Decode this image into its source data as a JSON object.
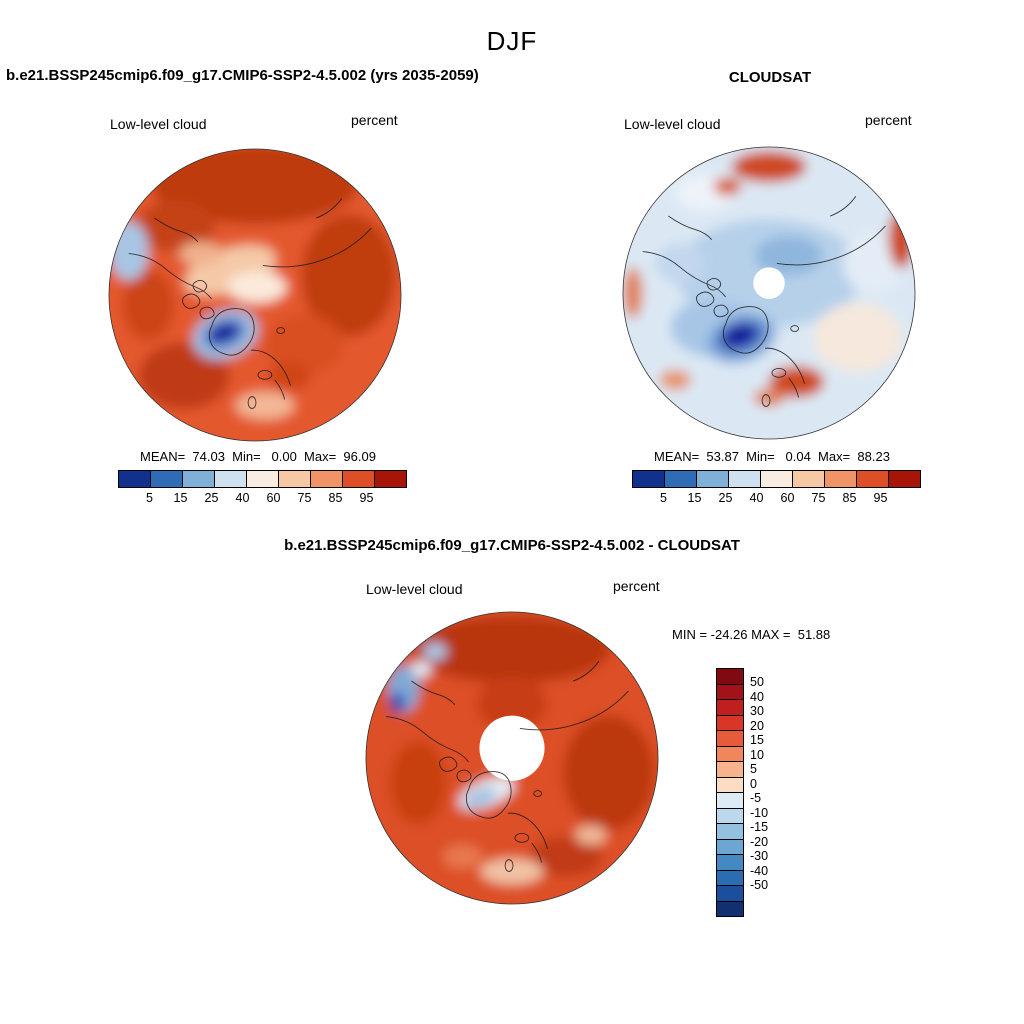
{
  "title": "DJF",
  "left_panel": {
    "title": "b.e21.BSSP245cmip6.f09_g17.CMIP6-SSP2-4.5.002 (yrs 2035-2059)",
    "field_label": "Low-level cloud",
    "units": "percent",
    "stats": "MEAN=  74.03  Min=   0.00  Max=  96.09"
  },
  "right_panel": {
    "title": "CLOUDSAT",
    "field_label": "Low-level cloud",
    "units": "percent",
    "stats": "MEAN=  53.87  Min=   0.04  Max=  88.23"
  },
  "diff_panel": {
    "title": "b.e21.BSSP245cmip6.f09_g17.CMIP6-SSP2-4.5.002 - CLOUDSAT",
    "field_label": "Low-level cloud",
    "units": "percent",
    "minmax": "MIN = -24.26 MAX =  51.88"
  },
  "shared_colorbar": {
    "ticks": [
      "5",
      "15",
      "25",
      "40",
      "60",
      "75",
      "85",
      "95"
    ],
    "colors": [
      "#12308e",
      "#2f6cb6",
      "#7fb0d8",
      "#cfe0ef",
      "#f9ede1",
      "#f7c8a6",
      "#f09468",
      "#dd4f28",
      "#a61508"
    ]
  },
  "diff_colorbar": {
    "ticks": [
      "50",
      "40",
      "30",
      "20",
      "15",
      "10",
      "5",
      "0",
      "-5",
      "-10",
      "-15",
      "-20",
      "-30",
      "-40",
      "-50"
    ],
    "colors": [
      "#7f0a12",
      "#a31119",
      "#c01f1f",
      "#d93627",
      "#e85b3a",
      "#f1855c",
      "#f7b48c",
      "#fbddc5",
      "#dcebf6",
      "#bcd8ec",
      "#95c1e1",
      "#6ca7d3",
      "#4589c3",
      "#2a6db3",
      "#1b4f9e",
      "#122f70"
    ]
  },
  "chart_data": [
    {
      "type": "heatmap",
      "subtype": "filled-contour-north-polar-map",
      "panel": "model",
      "season": "DJF",
      "title": "b.e21.BSSP245cmip6.f09_g17.CMIP6-SSP2-4.5.002 (yrs 2035-2059)",
      "variable": "Low-level cloud",
      "units": "percent",
      "stats": {
        "mean": 74.03,
        "min": 0.0,
        "max": 96.09
      },
      "contour_levels": [
        5,
        15,
        25,
        40,
        60,
        75,
        85,
        95
      ],
      "colorbar": {
        "orientation": "horizontal",
        "position": "below"
      }
    },
    {
      "type": "heatmap",
      "subtype": "filled-contour-north-polar-map",
      "panel": "observations",
      "season": "DJF",
      "title": "CLOUDSAT",
      "variable": "Low-level cloud",
      "units": "percent",
      "stats": {
        "mean": 53.87,
        "min": 0.04,
        "max": 88.23
      },
      "contour_levels": [
        5,
        15,
        25,
        40,
        60,
        75,
        85,
        95
      ],
      "colorbar": {
        "orientation": "horizontal",
        "position": "below"
      }
    },
    {
      "type": "heatmap",
      "subtype": "filled-contour-north-polar-map",
      "panel": "difference",
      "season": "DJF",
      "title": "b.e21.BSSP245cmip6.f09_g17.CMIP6-SSP2-4.5.002 - CLOUDSAT",
      "variable": "Low-level cloud",
      "units": "percent",
      "stats": {
        "min": -24.26,
        "max": 51.88
      },
      "contour_levels": [
        -50,
        -40,
        -30,
        -20,
        -15,
        -10,
        -5,
        0,
        5,
        10,
        15,
        20,
        30,
        40,
        50
      ],
      "colorbar": {
        "orientation": "vertical",
        "position": "right"
      }
    }
  ]
}
